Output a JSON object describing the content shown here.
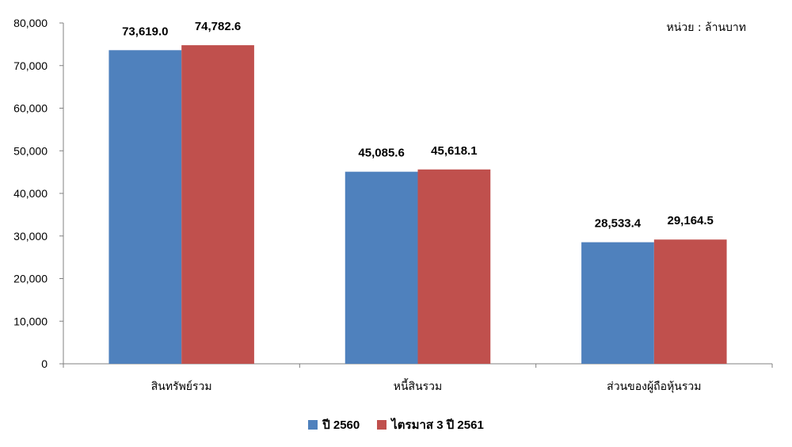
{
  "chart_data": {
    "type": "bar",
    "unit_note": "หน่วย : ล้านบาท",
    "categories": [
      "สินทรัพย์รวม",
      "หนี้สินรวม",
      "ส่วนของผู้ถือหุ้นรวม"
    ],
    "series": [
      {
        "name": "ปี 2560",
        "color": "#4F81BD",
        "values": [
          73619.0,
          45085.6,
          28533.4
        ],
        "labels": [
          "73,619.0",
          "45,085.6",
          "28,533.4"
        ]
      },
      {
        "name": "ไตรมาส 3 ปี 2561",
        "color": "#C0504D",
        "values": [
          74782.6,
          45618.1,
          29164.5
        ],
        "labels": [
          "74,782.6",
          "45,618.1",
          "29,164.5"
        ]
      }
    ],
    "ylim": [
      0,
      80000
    ],
    "yticks": [
      "0",
      "10,000",
      "20,000",
      "30,000",
      "40,000",
      "50,000",
      "60,000",
      "70,000",
      "80,000"
    ],
    "grid": false,
    "legend_position": "bottom-center"
  }
}
